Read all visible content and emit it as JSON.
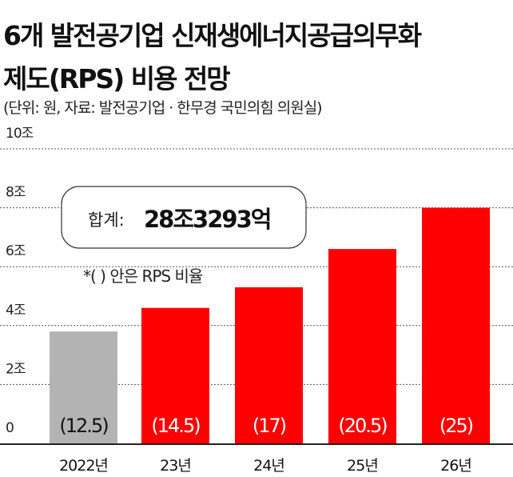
{
  "title_line1": "6개 발전공기업 신재생에너지공급의무화",
  "title_line2": "제도(RPS) 비용 전망",
  "subtitle": "(단위: 원, 자료: 발전공기업 · 한무경 국민의힘 의원실)",
  "total_label": "합계:",
  "total_value": "28조3293억",
  "note": "*(  ) 안은 RPS 비율",
  "chart_data": {
    "type": "bar",
    "categories": [
      "2022년",
      "23년",
      "24년",
      "25년",
      "26년"
    ],
    "values": [
      3.8,
      4.6,
      5.3,
      6.6,
      8.0
    ],
    "unit": "조",
    "data_labels": [
      "(12.5)",
      "(14.5)",
      "(17)",
      "(20.5)",
      "(25)"
    ],
    "ytick_labels": [
      "0",
      "2조",
      "4조",
      "6조",
      "8조",
      "10조"
    ],
    "yticks": [
      0,
      2,
      4,
      6,
      8,
      10
    ],
    "ylim": [
      0,
      10
    ],
    "grid": true,
    "colors": [
      "#b3b3b3",
      "#ff0000",
      "#ff0000",
      "#ff0000",
      "#ff0000"
    ]
  }
}
